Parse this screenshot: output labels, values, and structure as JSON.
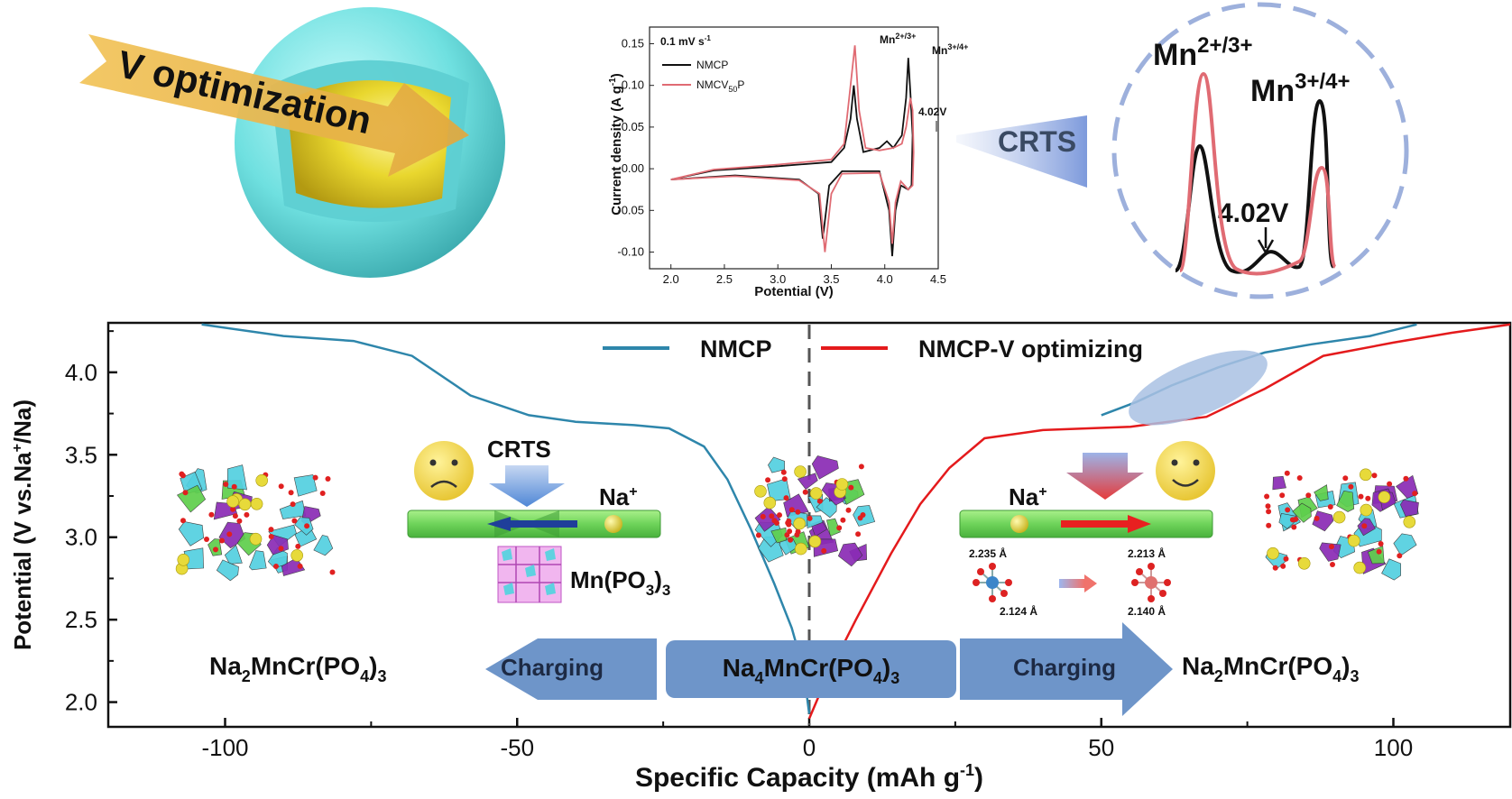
{
  "top_left": {
    "label": "V optimization",
    "colors": {
      "shell": "#6fe0e0",
      "core": "#e9d72e",
      "arrow": "#e8b84a"
    }
  },
  "cv_inset": {
    "scan_rate": "0.1 mV s",
    "scan_rate_exp": "-1",
    "ylabel": "Current density (A g",
    "ylabel_exp": "-1",
    "ylabel_end": ")",
    "xlabel": "Potential (V)",
    "peak_labels": [
      {
        "base": "Mn",
        "sup": "2+/3+"
      },
      {
        "base": "Mn",
        "sup": "3+/4+"
      }
    ],
    "annotation": "4.02V",
    "legend": [
      {
        "name": "NMCP",
        "color": "#111111"
      },
      {
        "name": "NMCV",
        "sub": "50",
        "suffix": "P",
        "color": "#e06b73"
      }
    ],
    "chart_data": {
      "type": "line",
      "x_ticks": [
        "2.0",
        "2.5",
        "3.0",
        "3.5",
        "4.0",
        "4.5"
      ],
      "y_ticks": [
        "0.15",
        "0.10",
        "0.05",
        "0.00",
        "-0.05",
        "-0.10"
      ],
      "xlim": [
        1.8,
        4.5
      ],
      "ylim": [
        -0.12,
        0.17
      ]
    }
  },
  "zoom": {
    "label": "CRTS",
    "peak_labels": [
      {
        "base": "Mn",
        "sup": "2+/3+"
      },
      {
        "base": "Mn",
        "sup": "3+/4+"
      }
    ],
    "annotation": "4.02V"
  },
  "main": {
    "ylabel": "Potential (V vs.Na",
    "ylabel_sup": "+",
    "ylabel_end": "/Na)",
    "xlabel": "Specific Capacity (mAh g",
    "xlabel_sup": "-1",
    "xlabel_end": ")",
    "legend": [
      {
        "name": "NMCP",
        "color": "#2e86ab"
      },
      {
        "name": "NMCP-V optimizing",
        "color": "#e41a1c"
      }
    ],
    "chart_data": {
      "type": "line",
      "x_ticks": [
        "-100",
        "-50",
        "0",
        "50",
        "100"
      ],
      "y_ticks": [
        "4.0",
        "3.5",
        "3.0",
        "2.5",
        "2.0"
      ],
      "xlim": [
        -120,
        120
      ],
      "ylim": [
        1.85,
        4.3
      ]
    },
    "labels": {
      "crts": "CRTS",
      "na_left": "Na",
      "na_right": "Na",
      "na_sup": "+",
      "mn_po3": "Mn(PO",
      "mn_po3_sub": "3",
      "mn_po3_end": ")",
      "mn_po3_sub2": "3",
      "bond_left_top": "2.235 Å",
      "bond_left_bottom": "2.124 Å",
      "bond_right_top": "2.213 Å",
      "bond_right_bottom": "2.140 Å",
      "left_formula": "Na2MnCr(PO4)3",
      "center_formula": "Na4MnCr(PO4)3",
      "right_formula": "Na2MnCr(PO4)3",
      "charging_left": "Charging",
      "charging_right": "Charging"
    }
  }
}
